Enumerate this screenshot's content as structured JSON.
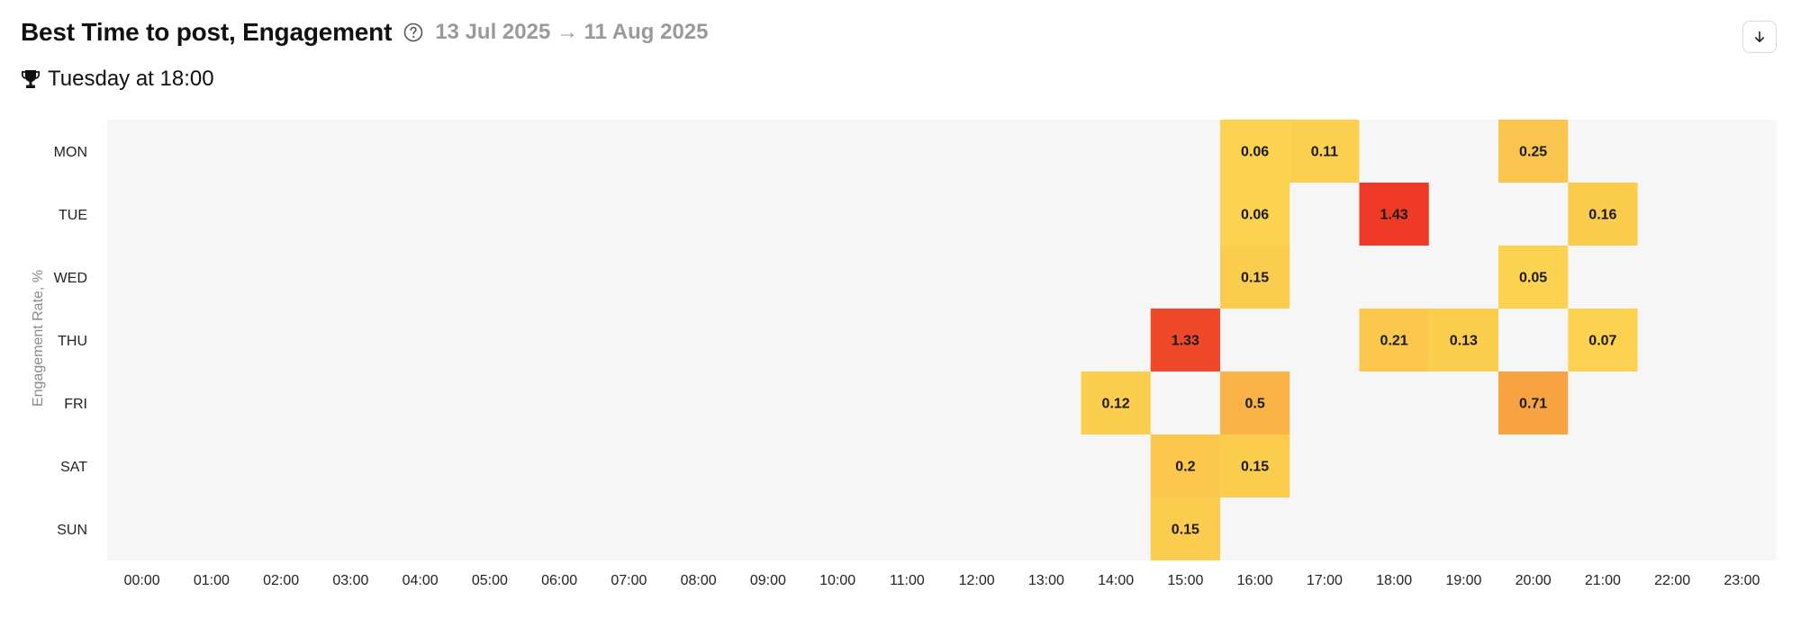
{
  "header": {
    "title": "Best Time to post, Engagement",
    "date_range": "13 Jul 2025 → 11 Aug 2025",
    "help_icon": "question-circle-icon",
    "download_icon": "arrow-down-icon"
  },
  "best_time": {
    "icon": "trophy-icon",
    "text": "Tuesday at 18:00"
  },
  "chart_data": {
    "type": "heatmap",
    "ylabel": "Engagement Rate, %",
    "y_categories": [
      "MON",
      "TUE",
      "WED",
      "THU",
      "FRI",
      "SAT",
      "SUN"
    ],
    "x_categories": [
      "00:00",
      "01:00",
      "02:00",
      "03:00",
      "04:00",
      "05:00",
      "06:00",
      "07:00",
      "08:00",
      "09:00",
      "10:00",
      "11:00",
      "12:00",
      "13:00",
      "14:00",
      "15:00",
      "16:00",
      "17:00",
      "18:00",
      "19:00",
      "20:00",
      "21:00",
      "22:00",
      "23:00"
    ],
    "cells": [
      {
        "day": "MON",
        "hour": "16:00",
        "value": 0.06
      },
      {
        "day": "MON",
        "hour": "17:00",
        "value": 0.11
      },
      {
        "day": "MON",
        "hour": "20:00",
        "value": 0.25
      },
      {
        "day": "TUE",
        "hour": "16:00",
        "value": 0.06
      },
      {
        "day": "TUE",
        "hour": "18:00",
        "value": 1.43
      },
      {
        "day": "TUE",
        "hour": "21:00",
        "value": 0.16
      },
      {
        "day": "WED",
        "hour": "16:00",
        "value": 0.15
      },
      {
        "day": "WED",
        "hour": "20:00",
        "value": 0.05
      },
      {
        "day": "THU",
        "hour": "15:00",
        "value": 1.33
      },
      {
        "day": "THU",
        "hour": "18:00",
        "value": 0.21
      },
      {
        "day": "THU",
        "hour": "19:00",
        "value": 0.13
      },
      {
        "day": "THU",
        "hour": "21:00",
        "value": 0.07
      },
      {
        "day": "FRI",
        "hour": "14:00",
        "value": 0.12
      },
      {
        "day": "FRI",
        "hour": "16:00",
        "value": 0.5
      },
      {
        "day": "FRI",
        "hour": "20:00",
        "value": 0.71
      },
      {
        "day": "SAT",
        "hour": "15:00",
        "value": 0.2
      },
      {
        "day": "SAT",
        "hour": "16:00",
        "value": 0.15
      },
      {
        "day": "SUN",
        "hour": "15:00",
        "value": 0.15
      }
    ],
    "color_scale": {
      "low": "#fcd751",
      "mid": "#f7a342",
      "high": "#ee3a26"
    },
    "background": "#f6f6f6"
  }
}
